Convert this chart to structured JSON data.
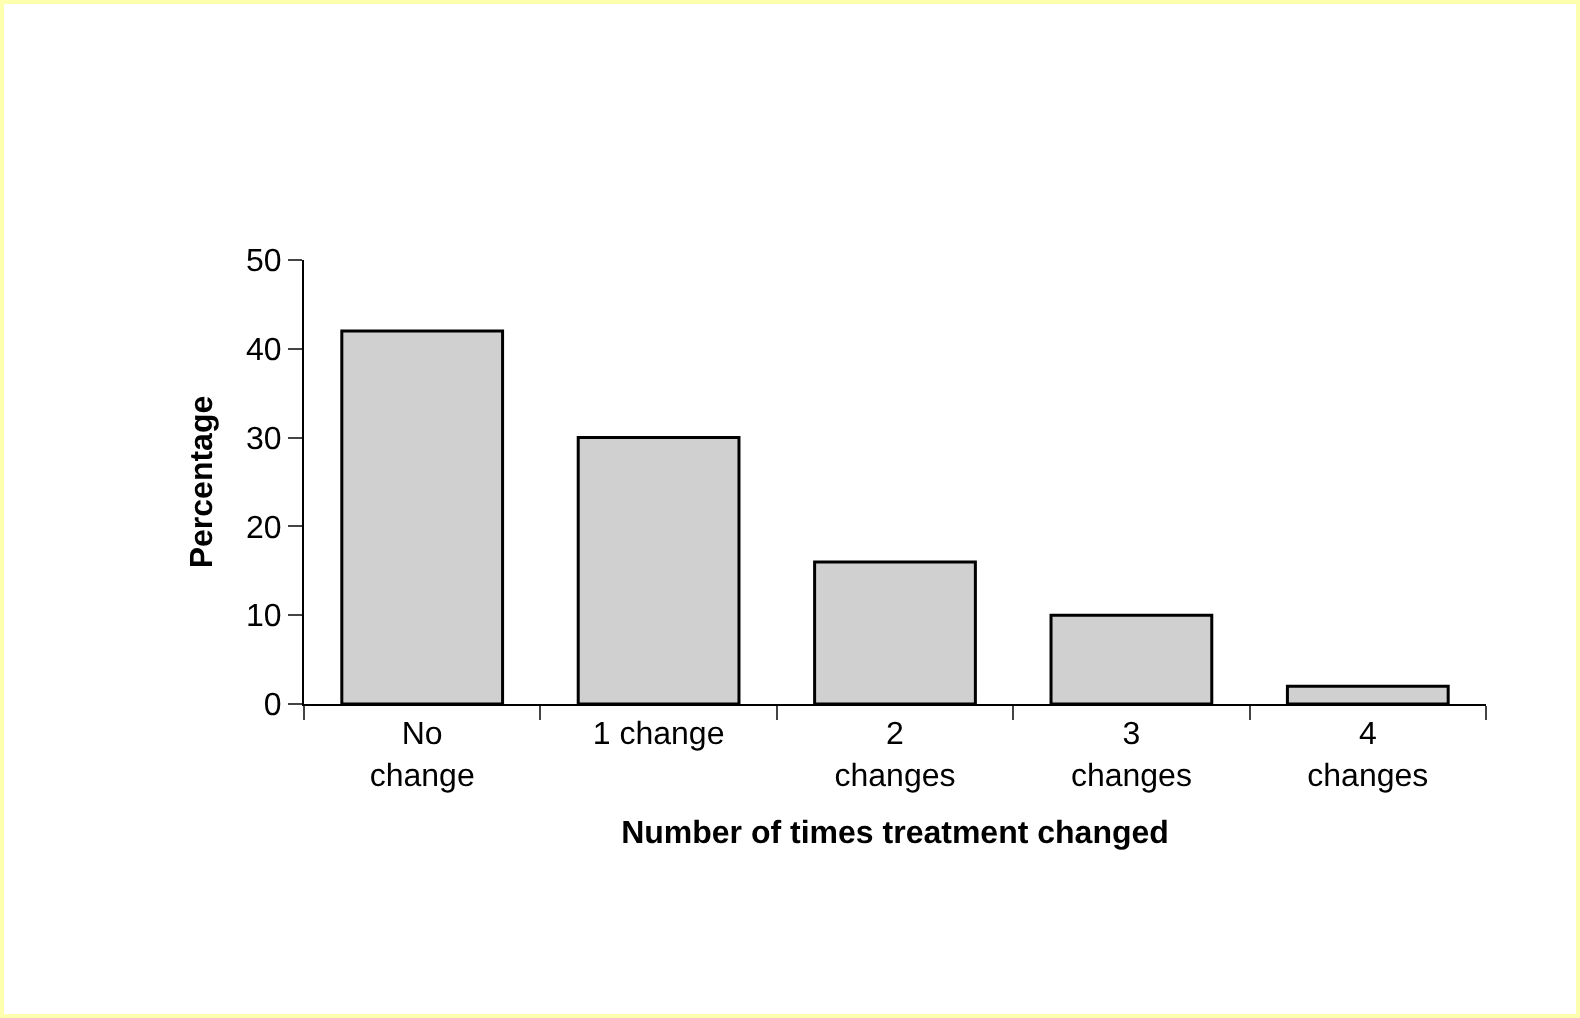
{
  "chart_data": {
    "type": "bar",
    "categories": [
      "No change",
      "1 change",
      "2 changes",
      "3 changes",
      "4 changes"
    ],
    "values": [
      42,
      30,
      16,
      10,
      2
    ],
    "color": "#d0d0d0",
    "xlabel": "Number of times treatment changed",
    "ylabel": "Percentage",
    "ylim": [
      0,
      50
    ],
    "yticks": [
      0,
      10,
      20,
      30,
      40,
      50
    ],
    "grid": false
  }
}
